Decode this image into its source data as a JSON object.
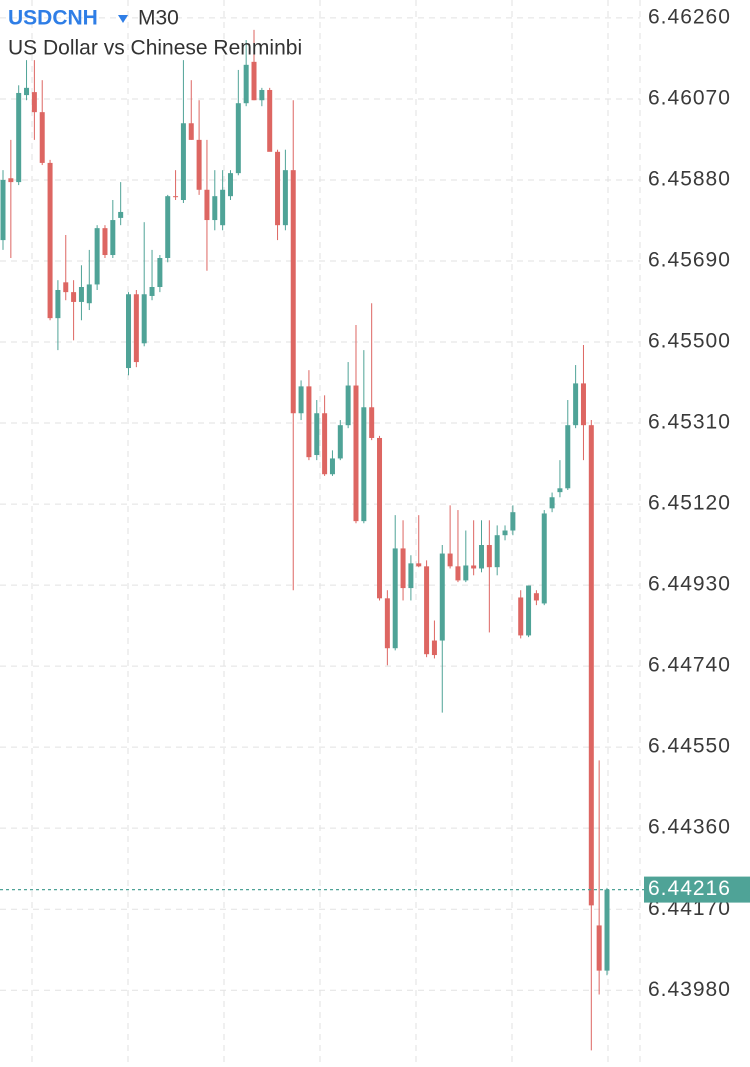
{
  "chart_data": {
    "type": "candlestick",
    "symbol": "USDCNH",
    "timeframe": "M30",
    "subtitle": "US Dollar vs Chinese Renminbi",
    "up_color": "#4fa397",
    "down_color": "#dd6662",
    "grid": true,
    "ylim": [
      6.438,
      6.46302
    ],
    "yticks": [
      {
        "value": 6.4626,
        "label": "6.46260"
      },
      {
        "value": 6.4607,
        "label": "6.46070"
      },
      {
        "value": 6.4588,
        "label": "6.45880"
      },
      {
        "value": 6.4569,
        "label": "6.45690"
      },
      {
        "value": 6.455,
        "label": "6.45500"
      },
      {
        "value": 6.4531,
        "label": "6.45310"
      },
      {
        "value": 6.4512,
        "label": "6.45120"
      },
      {
        "value": 6.4493,
        "label": "6.44930"
      },
      {
        "value": 6.4474,
        "label": "6.44740"
      },
      {
        "value": 6.4455,
        "label": "6.44550"
      },
      {
        "value": 6.4436,
        "label": "6.44360"
      },
      {
        "value": 6.4417,
        "label": "6.44170"
      },
      {
        "value": 6.4398,
        "label": "6.43980"
      }
    ],
    "last_price": {
      "value": 6.44216,
      "label": "6.44216"
    },
    "open": [
      6.45739,
      6.45884,
      6.45875,
      6.46079,
      6.46086,
      6.46039,
      6.4592,
      6.45556,
      6.4564,
      6.45617,
      6.45594,
      6.45591,
      6.45635,
      6.45767,
      6.45704,
      6.45791,
      6.45439,
      6.45612,
      6.45497,
      6.45608,
      6.45629,
      6.45697,
      6.45842,
      6.45833,
      6.46013,
      6.45974,
      6.45857,
      6.45786,
      6.45774,
      6.45842,
      6.45896,
      6.4606,
      6.46157,
      6.46067,
      6.46091,
      6.45946,
      6.45774,
      6.45903,
      6.45333,
      6.45396,
      6.45235,
      6.45333,
      6.4519,
      6.45227,
      6.45305,
      6.45398,
      6.4508,
      6.45347,
      6.45275,
      6.44899,
      6.44782,
      6.45016,
      6.44923,
      6.44981,
      6.44974,
      6.448,
      6.448,
      6.45004,
      6.44974,
      6.44941,
      6.44976,
      6.44969,
      6.45024,
      6.44972,
      6.45047,
      6.45058,
      6.44901,
      6.44812,
      6.44911,
      6.44887,
      6.4511,
      6.45148,
      6.45157,
      6.45305,
      6.45403,
      6.45305,
      6.44132,
      6.44026
    ],
    "high": [
      6.45903,
      6.45974,
      6.46102,
      6.46161,
      6.46161,
      6.46114,
      6.45927,
      6.45645,
      6.45751,
      6.45645,
      6.4568,
      6.45716,
      6.45774,
      6.45774,
      6.45833,
      6.45875,
      6.45617,
      6.45622,
      6.45781,
      6.45716,
      6.45704,
      6.45845,
      6.45903,
      6.46161,
      6.46114,
      6.46067,
      6.45974,
      6.45903,
      6.45903,
      6.45903,
      6.46138,
      6.46208,
      6.46232,
      6.46096,
      6.46096,
      6.45951,
      6.45951,
      6.46067,
      6.4541,
      6.45434,
      6.45364,
      6.45375,
      6.45246,
      6.45317,
      6.45453,
      6.4554,
      6.45481,
      6.45591,
      6.4528,
      6.44918,
      6.45094,
      6.45082,
      6.45,
      6.45094,
      6.44988,
      6.44847,
      6.45024,
      6.45117,
      6.45106,
      6.45058,
      6.45082,
      6.45082,
      6.45082,
      6.4507,
      6.4507,
      6.45117,
      6.44918,
      6.44929,
      6.44918,
      6.45106,
      6.45147,
      6.45223,
      6.45364,
      6.45446,
      6.45493,
      6.45317,
      6.44519,
      6.4422
    ],
    "low": [
      6.45716,
      6.45697,
      6.45868,
      6.46067,
      6.45974,
      6.45915,
      6.45551,
      6.45481,
      6.45598,
      6.45504,
      6.45551,
      6.45575,
      6.45622,
      6.45697,
      6.45697,
      6.45774,
      6.45422,
      6.45441,
      6.4549,
      6.45598,
      6.45617,
      6.45687,
      6.45833,
      6.45826,
      6.45974,
      6.45845,
      6.45667,
      6.45762,
      6.45762,
      6.45833,
      6.45891,
      6.46053,
      6.46067,
      6.46053,
      6.45951,
      6.45739,
      6.45762,
      6.44918,
      6.45317,
      6.45223,
      6.45223,
      6.45186,
      6.45186,
      6.45223,
      6.45298,
      6.45075,
      6.45075,
      6.4527,
      6.44894,
      6.44742,
      6.44777,
      6.44894,
      6.44894,
      6.44972,
      6.44761,
      6.44758,
      6.44631,
      6.44969,
      6.44937,
      6.44937,
      6.44953,
      6.4496,
      6.44819,
      6.44953,
      6.45035,
      6.45047,
      6.44805,
      6.44808,
      6.44883,
      6.44883,
      6.45101,
      6.45136,
      6.45153,
      6.45298,
      6.45223,
      6.43839,
      6.4397,
      6.44015
    ],
    "close": [
      6.4588,
      6.45875,
      6.46084,
      6.46096,
      6.46039,
      6.4592,
      6.45556,
      6.45622,
      6.45617,
      6.45594,
      6.45629,
      6.45635,
      6.45767,
      6.45704,
      6.45786,
      6.45805,
      6.45612,
      6.45453,
      6.45612,
      6.45629,
      6.45697,
      6.45842,
      6.4584,
      6.46013,
      6.45974,
      6.45857,
      6.45786,
      6.45842,
      6.45857,
      6.45896,
      6.4606,
      6.4615,
      6.46067,
      6.46091,
      6.45946,
      6.45774,
      6.45903,
      6.45333,
      6.45396,
      6.4523,
      6.45333,
      6.4519,
      6.45227,
      6.45305,
      6.45398,
      6.4508,
      6.45347,
      6.45275,
      6.44899,
      6.44782,
      6.45016,
      6.44923,
      6.44981,
      6.44974,
      6.44768,
      6.44766,
      6.45004,
      6.44974,
      6.44941,
      6.44976,
      6.44969,
      6.45024,
      6.44972,
      6.45047,
      6.45058,
      6.45101,
      6.44812,
      6.44929,
      6.44894,
      6.45098,
      6.45136,
      6.45157,
      6.45305,
      6.45403,
      6.45305,
      6.44179,
      6.44026,
      6.44216
    ]
  }
}
